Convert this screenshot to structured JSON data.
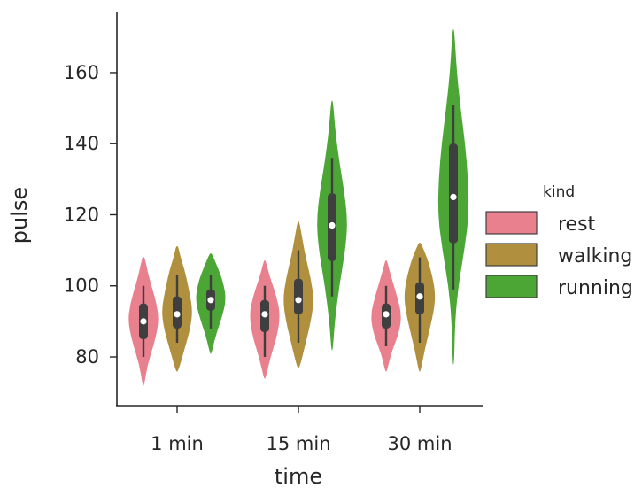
{
  "chart_data": {
    "type": "violin",
    "xlabel": "time",
    "ylabel": "pulse",
    "categories": [
      "1 min",
      "15 min",
      "30 min"
    ],
    "yticks": [
      80,
      100,
      120,
      140,
      160
    ],
    "ylim": [
      66,
      176
    ],
    "grid": false,
    "legend": {
      "title": "kind",
      "placement": "right"
    },
    "series": [
      {
        "name": "rest",
        "color": "#e8808e",
        "distributions": [
          {
            "min": 72,
            "q1": 85,
            "median": 90,
            "q3": 95,
            "max": 108,
            "wmin": 80,
            "wmax": 100,
            "profile": [
              [
                72,
                0.02
              ],
              [
                78,
                0.25
              ],
              [
                84,
                0.7
              ],
              [
                90,
                1.0
              ],
              [
                95,
                0.85
              ],
              [
                100,
                0.5
              ],
              [
                104,
                0.25
              ],
              [
                108,
                0.05
              ]
            ]
          },
          {
            "min": 74,
            "q1": 87,
            "median": 92,
            "q3": 96,
            "max": 107,
            "wmin": 80,
            "wmax": 100,
            "profile": [
              [
                74,
                0.03
              ],
              [
                80,
                0.35
              ],
              [
                86,
                0.8
              ],
              [
                92,
                1.0
              ],
              [
                97,
                0.75
              ],
              [
                102,
                0.35
              ],
              [
                105,
                0.15
              ],
              [
                107,
                0.03
              ]
            ]
          },
          {
            "min": 76,
            "q1": 88,
            "median": 92,
            "q3": 95,
            "max": 107,
            "wmin": 83,
            "wmax": 100,
            "profile": [
              [
                76,
                0.03
              ],
              [
                81,
                0.3
              ],
              [
                87,
                0.85
              ],
              [
                92,
                1.0
              ],
              [
                97,
                0.7
              ],
              [
                102,
                0.35
              ],
              [
                105,
                0.15
              ],
              [
                107,
                0.03
              ]
            ]
          }
        ]
      },
      {
        "name": "walking",
        "color": "#b0903f",
        "distributions": [
          {
            "min": 76,
            "q1": 88,
            "median": 92,
            "q3": 97,
            "max": 111,
            "wmin": 84,
            "wmax": 103,
            "profile": [
              [
                76,
                0.05
              ],
              [
                82,
                0.45
              ],
              [
                88,
                0.85
              ],
              [
                93,
                1.0
              ],
              [
                98,
                0.8
              ],
              [
                104,
                0.5
              ],
              [
                108,
                0.2
              ],
              [
                111,
                0.05
              ]
            ]
          },
          {
            "min": 77,
            "q1": 92,
            "median": 96,
            "q3": 102,
            "max": 118,
            "wmin": 84,
            "wmax": 110,
            "profile": [
              [
                77,
                0.05
              ],
              [
                83,
                0.4
              ],
              [
                90,
                0.8
              ],
              [
                96,
                1.0
              ],
              [
                102,
                0.8
              ],
              [
                108,
                0.45
              ],
              [
                114,
                0.2
              ],
              [
                118,
                0.03
              ]
            ]
          },
          {
            "min": 76,
            "q1": 92,
            "median": 97,
            "q3": 101,
            "max": 112,
            "wmin": 84,
            "wmax": 108,
            "profile": [
              [
                76,
                0.03
              ],
              [
                82,
                0.3
              ],
              [
                88,
                0.65
              ],
              [
                94,
                0.95
              ],
              [
                98,
                1.0
              ],
              [
                103,
                0.8
              ],
              [
                108,
                0.45
              ],
              [
                112,
                0.05
              ]
            ]
          }
        ]
      },
      {
        "name": "running",
        "color": "#4ca635",
        "distributions": [
          {
            "min": 81,
            "q1": 93,
            "median": 96,
            "q3": 99,
            "max": 109,
            "wmin": 88,
            "wmax": 103,
            "profile": [
              [
                81,
                0.02
              ],
              [
                86,
                0.3
              ],
              [
                91,
                0.7
              ],
              [
                96,
                1.0
              ],
              [
                101,
                0.8
              ],
              [
                105,
                0.45
              ],
              [
                109,
                0.05
              ]
            ]
          },
          {
            "min": 82,
            "q1": 107,
            "median": 117,
            "q3": 126,
            "max": 152,
            "wmin": 97,
            "wmax": 136,
            "profile": [
              [
                82,
                0.02
              ],
              [
                90,
                0.15
              ],
              [
                100,
                0.45
              ],
              [
                110,
                0.85
              ],
              [
                118,
                1.0
              ],
              [
                126,
                0.8
              ],
              [
                135,
                0.45
              ],
              [
                143,
                0.2
              ],
              [
                152,
                0.03
              ]
            ]
          },
          {
            "min": 78,
            "q1": 112,
            "median": 125,
            "q3": 140,
            "max": 172,
            "wmin": 99,
            "wmax": 151,
            "profile": [
              [
                78,
                0.02
              ],
              [
                90,
                0.08
              ],
              [
                100,
                0.3
              ],
              [
                110,
                0.7
              ],
              [
                120,
                1.0
              ],
              [
                130,
                0.95
              ],
              [
                140,
                0.75
              ],
              [
                150,
                0.45
              ],
              [
                160,
                0.2
              ],
              [
                172,
                0.03
              ]
            ]
          }
        ]
      }
    ]
  }
}
